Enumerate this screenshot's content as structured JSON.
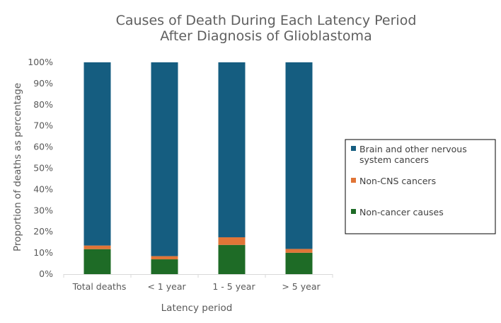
{
  "chart_data": {
    "type": "bar",
    "stacked": true,
    "title_lines": [
      "Causes of Death During Each Latency Period",
      "After Diagnosis of Glioblastoma"
    ],
    "xlabel": "Latency period",
    "ylabel": "Proportion of deaths as percentage",
    "categories": [
      "Total deaths",
      "< 1 year",
      "1 - 5 year",
      "> 5 year"
    ],
    "ylim": [
      0,
      100
    ],
    "y_ticks": [
      0,
      10,
      20,
      30,
      40,
      50,
      60,
      70,
      80,
      90,
      100
    ],
    "y_tick_labels": [
      "0%",
      "10%",
      "20%",
      "30%",
      "40%",
      "50%",
      "60%",
      "70%",
      "80%",
      "90%",
      "100%"
    ],
    "series": [
      {
        "name": "Non-cancer causes",
        "color": "#1e6b26",
        "values": [
          11.8,
          7.0,
          13.8,
          10.1
        ]
      },
      {
        "name": "Non-CNS cancers",
        "color": "#e07537",
        "values": [
          1.7,
          1.5,
          3.6,
          1.8
        ]
      },
      {
        "name": "Brain and other nervous system cancers",
        "color": "#155d80",
        "values": [
          86.5,
          91.5,
          82.6,
          88.1
        ]
      }
    ],
    "legend": {
      "position": "right",
      "entries": [
        {
          "lines": [
            "Brain and other nervous",
            "system cancers"
          ],
          "color": "#155d80"
        },
        {
          "lines": [
            "Non-CNS cancers"
          ],
          "color": "#e07537"
        },
        {
          "lines": [
            "Non-cancer causes"
          ],
          "color": "#1e6b26"
        }
      ]
    },
    "grid": false
  }
}
